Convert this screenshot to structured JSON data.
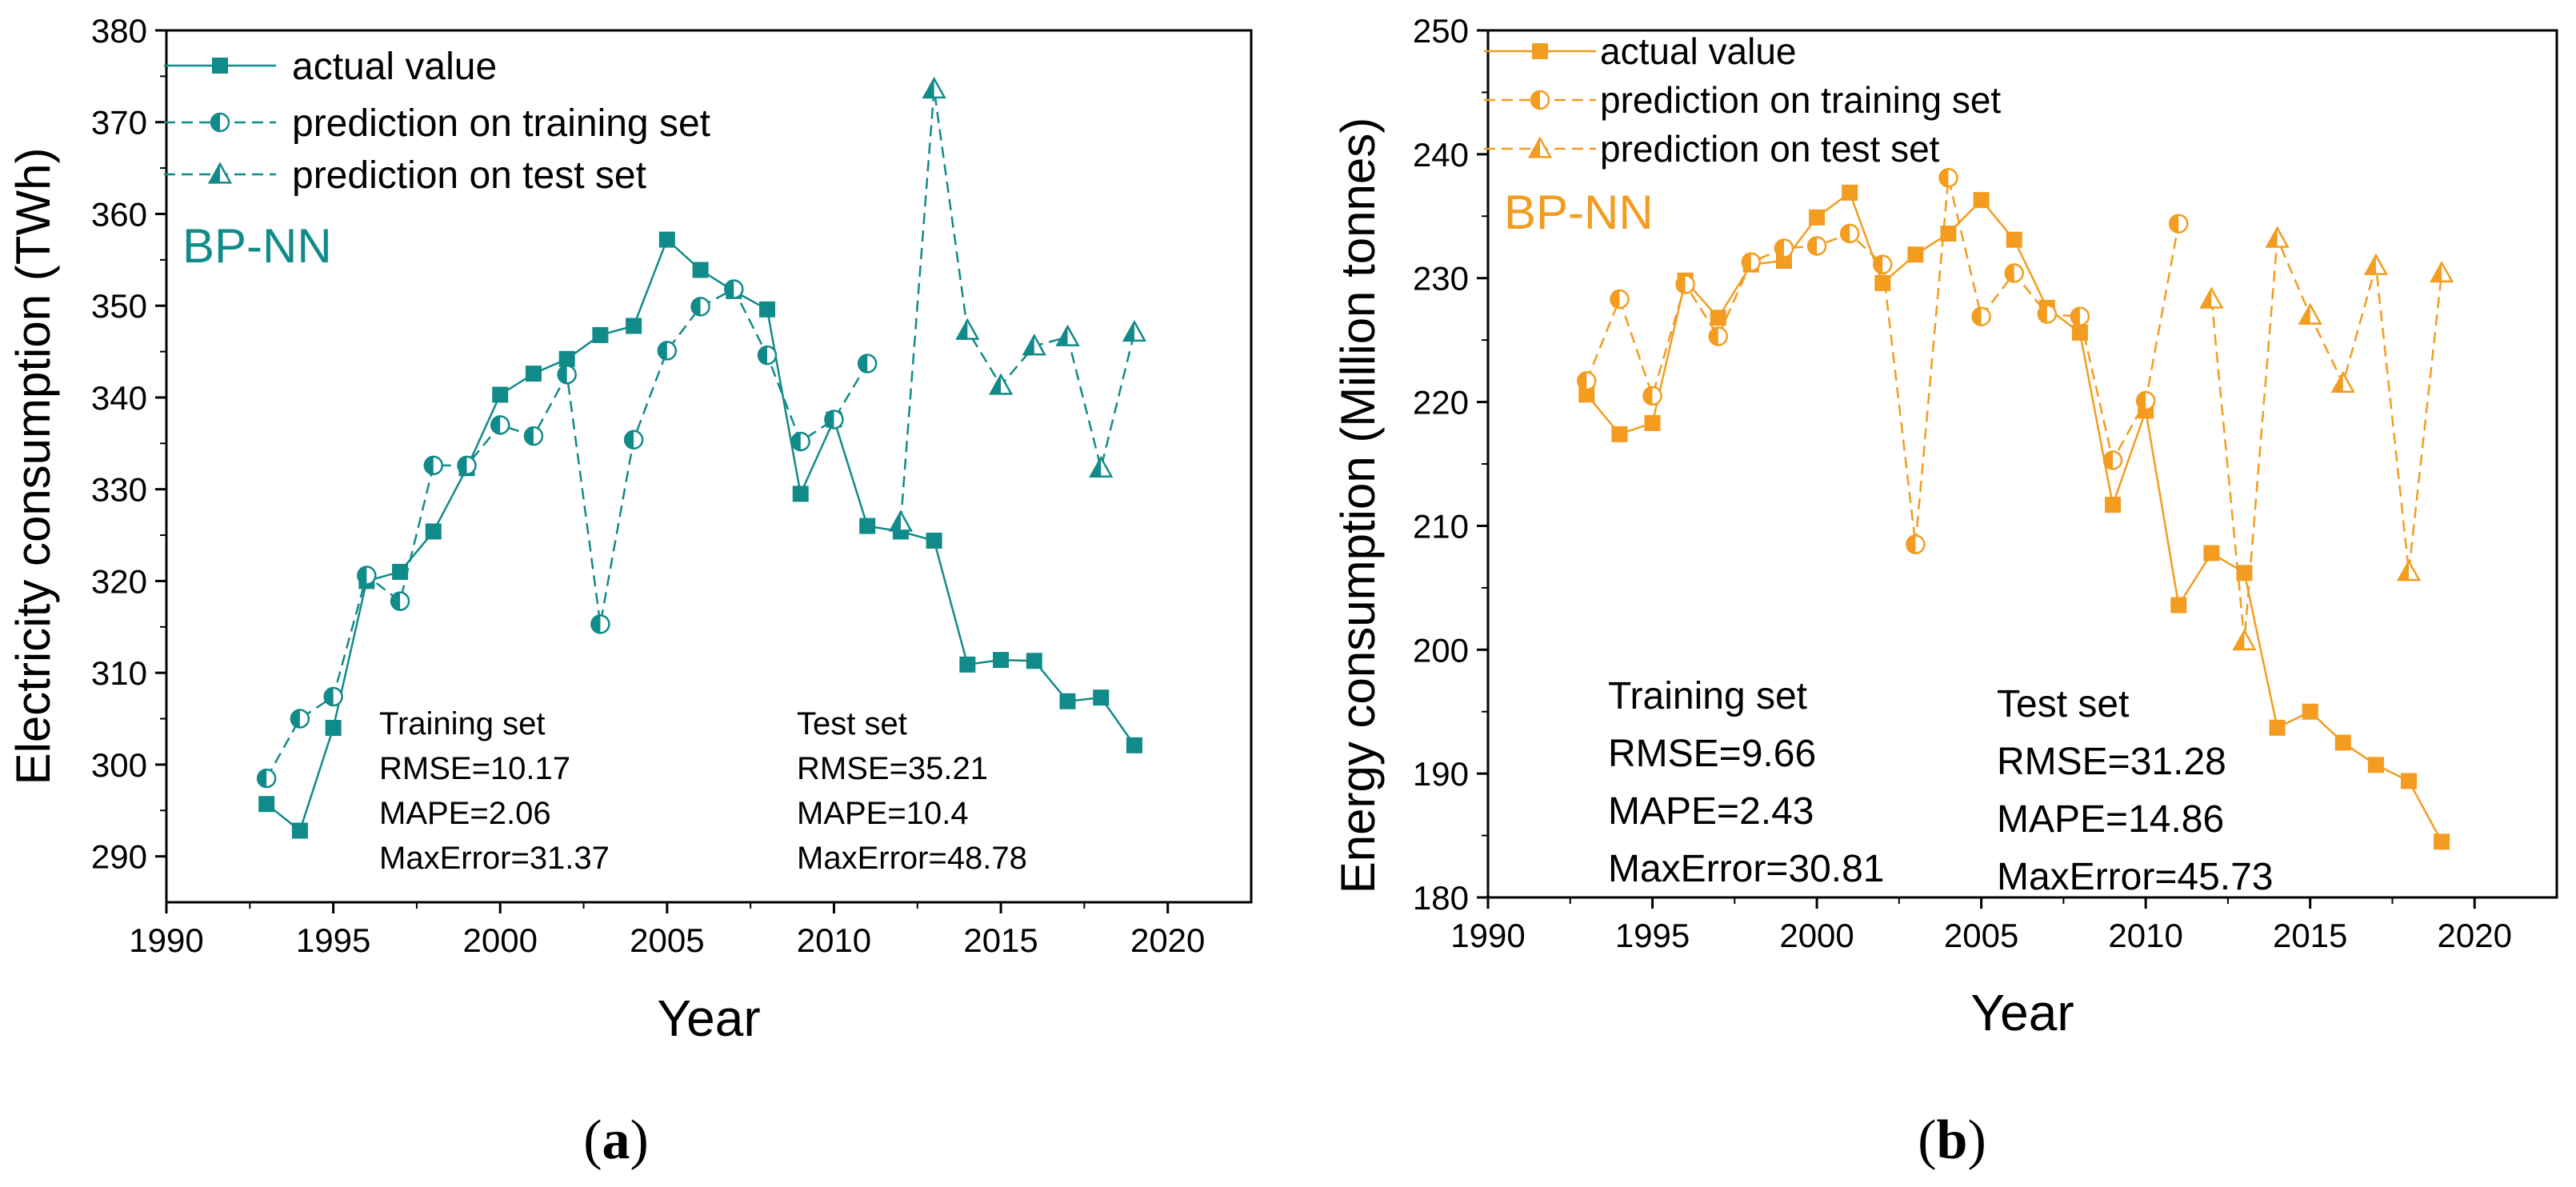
{
  "chart_data": [
    {
      "panel": "a",
      "panel_label": {
        "open": "(",
        "letter": "a",
        "close": ")"
      },
      "type": "line",
      "title": "",
      "model_label": "BP-NN",
      "xlabel": "Year",
      "ylabel": "Electricity consumption (TWh)",
      "xlim": [
        1990,
        2022.5
      ],
      "ylim": [
        285,
        380
      ],
      "xticks": [
        1990,
        1995,
        2000,
        2005,
        2010,
        2015,
        2020
      ],
      "yticks": [
        290,
        300,
        310,
        320,
        330,
        340,
        350,
        360,
        370,
        380
      ],
      "color": "#118a8a",
      "series": [
        {
          "name": "actual value",
          "style": "solid",
          "marker": "square",
          "x": [
            1993,
            1994,
            1995,
            1996,
            1997,
            1998,
            1999,
            2000,
            2001,
            2002,
            2003,
            2004,
            2005,
            2006,
            2007,
            2008,
            2009,
            2010,
            2011,
            2012,
            2013,
            2014,
            2015,
            2016,
            2017,
            2018,
            2019
          ],
          "values": [
            295.7,
            292.8,
            304.0,
            320.0,
            321.0,
            325.4,
            332.3,
            340.3,
            342.6,
            344.2,
            346.8,
            347.8,
            357.2,
            353.9,
            351.6,
            349.6,
            329.5,
            337.6,
            326.0,
            325.4,
            324.4,
            310.9,
            311.4,
            311.3,
            306.9,
            307.3,
            302.1
          ]
        },
        {
          "name": "prediction on training set",
          "style": "dashed",
          "marker": "half-circle",
          "x": [
            1993,
            1994,
            1995,
            1996,
            1997,
            1998,
            1999,
            2000,
            2001,
            2002,
            2003,
            2004,
            2005,
            2006,
            2007,
            2008,
            2009,
            2010,
            2011
          ],
          "values": [
            298.5,
            305.0,
            307.4,
            320.6,
            317.8,
            332.6,
            332.6,
            337.0,
            335.8,
            342.5,
            315.3,
            335.4,
            345.1,
            349.9,
            351.8,
            344.6,
            335.2,
            337.6,
            343.7
          ]
        },
        {
          "name": "prediction on test set",
          "style": "dashed",
          "marker": "half-triangle",
          "x": [
            2012,
            2013,
            2014,
            2015,
            2016,
            2017,
            2018,
            2019
          ],
          "values": [
            326.4,
            373.6,
            347.3,
            341.3,
            345.6,
            346.6,
            332.3,
            347.1
          ]
        }
      ],
      "stats": {
        "training": {
          "heading": "Training set",
          "rmse": "RMSE=10.17",
          "mape": "MAPE=2.06",
          "maxerror": "MaxError=31.37"
        },
        "test": {
          "heading": "Test set",
          "rmse": "RMSE=35.21",
          "mape": "MAPE=10.4",
          "maxerror": "MaxError=48.78"
        }
      }
    },
    {
      "panel": "b",
      "panel_label": {
        "open": "(",
        "letter": "b",
        "close": ")"
      },
      "type": "line",
      "title": "",
      "model_label": "BP-NN",
      "xlabel": "Year",
      "ylabel": "Energy consumption (Million tonnes)",
      "xlim": [
        1990,
        2022.5
      ],
      "ylim": [
        180,
        250
      ],
      "xticks": [
        1990,
        1995,
        2000,
        2005,
        2010,
        2015,
        2020
      ],
      "yticks": [
        180,
        190,
        200,
        210,
        220,
        230,
        240,
        250
      ],
      "color": "#f39c1f",
      "series": [
        {
          "name": "actual value",
          "style": "solid",
          "marker": "square",
          "x": [
            1993,
            1994,
            1995,
            1996,
            1997,
            1998,
            1999,
            2000,
            2001,
            2002,
            2003,
            2004,
            2005,
            2006,
            2007,
            2008,
            2009,
            2010,
            2011,
            2012,
            2013,
            2014,
            2015,
            2016,
            2017,
            2018,
            2019
          ],
          "values": [
            220.6,
            217.4,
            218.3,
            229.8,
            226.8,
            231.1,
            231.4,
            234.9,
            236.9,
            229.6,
            231.9,
            233.6,
            236.3,
            233.1,
            227.6,
            225.6,
            211.7,
            219.3,
            203.6,
            207.8,
            206.2,
            193.7,
            195.0,
            192.5,
            190.7,
            189.4,
            184.5
          ]
        },
        {
          "name": "prediction on training set",
          "style": "dashed",
          "marker": "half-circle",
          "x": [
            1993,
            1994,
            1995,
            1996,
            1997,
            1998,
            1999,
            2000,
            2001,
            2002,
            2003,
            2004,
            2005,
            2006,
            2007,
            2008,
            2009,
            2010,
            2011
          ],
          "values": [
            221.7,
            228.3,
            220.5,
            229.5,
            225.3,
            231.3,
            232.4,
            232.6,
            233.6,
            231.1,
            208.5,
            238.1,
            226.9,
            230.4,
            227.1,
            226.9,
            215.3,
            220.1,
            234.4
          ]
        },
        {
          "name": "prediction on test set",
          "style": "dashed",
          "marker": "half-triangle",
          "x": [
            2012,
            2013,
            2014,
            2015,
            2016,
            2017,
            2018,
            2019
          ],
          "values": [
            228.3,
            200.7,
            233.2,
            227.0,
            221.5,
            231.0,
            206.3,
            230.4
          ]
        }
      ],
      "stats": {
        "training": {
          "heading": "Training set",
          "rmse": "RMSE=9.66",
          "mape": "MAPE=2.43",
          "maxerror": "MaxError=30.81"
        },
        "test": {
          "heading": "Test set",
          "rmse": "RMSE=31.28",
          "mape": "MAPE=14.86",
          "maxerror": "MaxError=45.73"
        }
      }
    }
  ]
}
